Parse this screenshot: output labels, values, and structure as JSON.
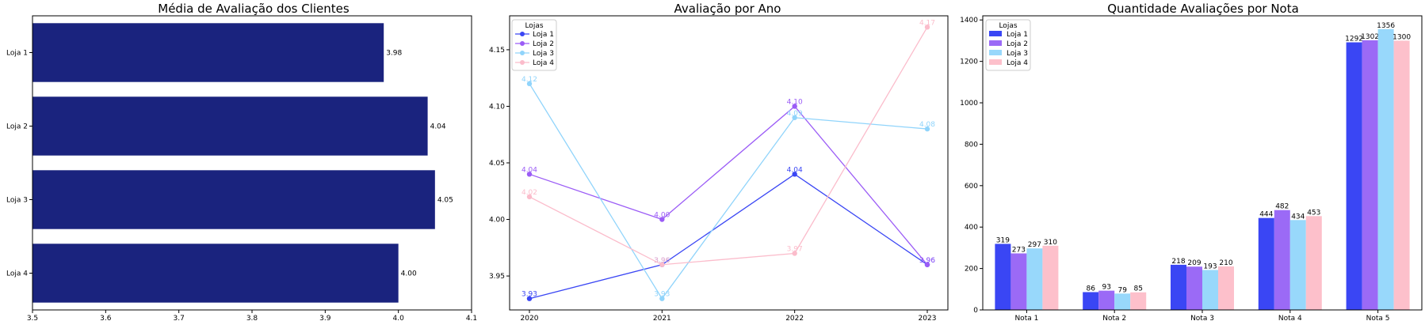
{
  "chart_data": [
    {
      "type": "bar",
      "orientation": "horizontal",
      "title": "Média de Avaliação dos Clientes",
      "categories": [
        "Loja 1",
        "Loja 2",
        "Loja 3",
        "Loja 4"
      ],
      "values": [
        3.98,
        4.04,
        4.05,
        4.0
      ],
      "value_labels": [
        "3.98",
        "4.04",
        "4.05",
        "4.00"
      ],
      "xlim": [
        3.5,
        4.1
      ],
      "xticks": [
        "3.5",
        "3.6",
        "3.7",
        "3.8",
        "3.9",
        "4.0",
        "4.1"
      ],
      "xlabel": "",
      "ylabel": "",
      "color": "#1a237e"
    },
    {
      "type": "line",
      "title": "Avaliação por Ano",
      "x": [
        "2020",
        "2021",
        "2022",
        "2023"
      ],
      "ylim": [
        3.92,
        4.18
      ],
      "yticks": [
        "3.95",
        "4.00",
        "4.05",
        "4.10",
        "4.15"
      ],
      "legend_title": "Lojas",
      "legend_position": "top-left",
      "series": [
        {
          "name": "Loja 1",
          "color": "#3a46f4",
          "values": [
            3.93,
            3.96,
            4.04,
            3.96
          ],
          "labels": [
            "3.93",
            "3.96",
            "4.04",
            "3.96"
          ]
        },
        {
          "name": "Loja 2",
          "color": "#9b5cf6",
          "values": [
            4.04,
            4.0,
            4.1,
            3.96
          ],
          "labels": [
            "4.04",
            "4.00",
            "4.10",
            "3.96"
          ]
        },
        {
          "name": "Loja 3",
          "color": "#90d4fb",
          "values": [
            4.12,
            3.93,
            4.09,
            4.08
          ],
          "labels": [
            "4.12",
            "3.93",
            "4.09",
            "4.08"
          ]
        },
        {
          "name": "Loja 4",
          "color": "#fbbccb",
          "values": [
            4.02,
            3.96,
            3.97,
            4.17
          ],
          "labels": [
            "4.02",
            "3.96",
            "3.97",
            "4.17"
          ]
        }
      ]
    },
    {
      "type": "bar",
      "orientation": "vertical",
      "grouped": true,
      "title": "Quantidade Avaliações por Nota",
      "categories": [
        "Nota 1",
        "Nota 2",
        "Nota 3",
        "Nota 4",
        "Nota 5"
      ],
      "ylim": [
        0,
        1420
      ],
      "yticks": [
        "0",
        "200",
        "400",
        "600",
        "800",
        "1000",
        "1200",
        "1400"
      ],
      "legend_title": "Lojas",
      "legend_position": "top-left",
      "series": [
        {
          "name": "Loja 1",
          "color": "#3a46f4",
          "values": [
            319,
            86,
            218,
            444,
            1292
          ]
        },
        {
          "name": "Loja 2",
          "color": "#9b6af6",
          "values": [
            273,
            93,
            209,
            482,
            1302
          ]
        },
        {
          "name": "Loja 3",
          "color": "#98d8fb",
          "values": [
            297,
            79,
            193,
            434,
            1356
          ]
        },
        {
          "name": "Loja 4",
          "color": "#fdc0cb",
          "values": [
            310,
            85,
            210,
            453,
            1300
          ]
        }
      ]
    }
  ]
}
